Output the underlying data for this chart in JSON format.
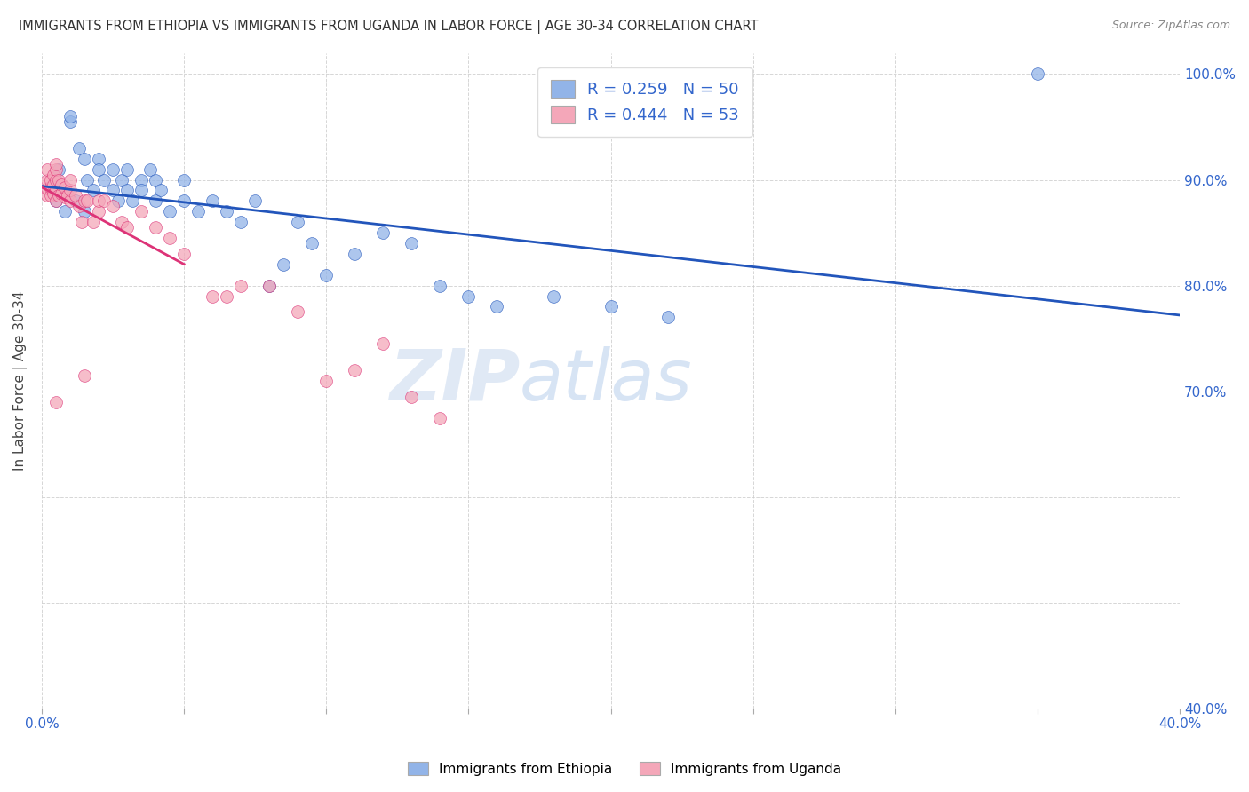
{
  "title": "IMMIGRANTS FROM ETHIOPIA VS IMMIGRANTS FROM UGANDA IN LABOR FORCE | AGE 30-34 CORRELATION CHART",
  "source": "Source: ZipAtlas.com",
  "ylabel": "In Labor Force | Age 30-34",
  "xmin": 0.0,
  "xmax": 0.4,
  "ymin": 0.4,
  "ymax": 1.02,
  "color_ethiopia": "#92b4e8",
  "color_uganda": "#f4a7b9",
  "line_color_ethiopia": "#2255bb",
  "line_color_uganda": "#dd3377",
  "watermark_zip": "ZIP",
  "watermark_atlas": "atlas",
  "ethiopia_x": [
    0.005,
    0.006,
    0.008,
    0.01,
    0.01,
    0.012,
    0.013,
    0.015,
    0.015,
    0.016,
    0.018,
    0.02,
    0.02,
    0.022,
    0.025,
    0.025,
    0.027,
    0.028,
    0.03,
    0.03,
    0.032,
    0.035,
    0.035,
    0.038,
    0.04,
    0.04,
    0.042,
    0.045,
    0.05,
    0.05,
    0.055,
    0.06,
    0.065,
    0.07,
    0.075,
    0.08,
    0.085,
    0.09,
    0.095,
    0.1,
    0.11,
    0.12,
    0.13,
    0.14,
    0.15,
    0.16,
    0.18,
    0.2,
    0.22,
    0.35
  ],
  "ethiopia_y": [
    0.88,
    0.91,
    0.87,
    0.955,
    0.96,
    0.88,
    0.93,
    0.87,
    0.92,
    0.9,
    0.89,
    0.92,
    0.91,
    0.9,
    0.89,
    0.91,
    0.88,
    0.9,
    0.89,
    0.91,
    0.88,
    0.9,
    0.89,
    0.91,
    0.88,
    0.9,
    0.89,
    0.87,
    0.88,
    0.9,
    0.87,
    0.88,
    0.87,
    0.86,
    0.88,
    0.8,
    0.82,
    0.86,
    0.84,
    0.81,
    0.83,
    0.85,
    0.84,
    0.8,
    0.79,
    0.78,
    0.79,
    0.78,
    0.77,
    1.0
  ],
  "uganda_x": [
    0.002,
    0.002,
    0.002,
    0.002,
    0.003,
    0.003,
    0.003,
    0.004,
    0.004,
    0.004,
    0.005,
    0.005,
    0.005,
    0.005,
    0.005,
    0.006,
    0.006,
    0.007,
    0.007,
    0.008,
    0.008,
    0.009,
    0.01,
    0.01,
    0.01,
    0.012,
    0.013,
    0.014,
    0.015,
    0.016,
    0.018,
    0.02,
    0.02,
    0.022,
    0.025,
    0.028,
    0.03,
    0.035,
    0.04,
    0.045,
    0.05,
    0.06,
    0.065,
    0.07,
    0.08,
    0.09,
    0.1,
    0.11,
    0.12,
    0.13,
    0.14,
    0.015,
    0.005
  ],
  "uganda_y": [
    0.885,
    0.892,
    0.9,
    0.91,
    0.885,
    0.893,
    0.9,
    0.887,
    0.895,
    0.905,
    0.88,
    0.89,
    0.9,
    0.91,
    0.915,
    0.885,
    0.9,
    0.887,
    0.895,
    0.884,
    0.893,
    0.885,
    0.88,
    0.89,
    0.9,
    0.885,
    0.875,
    0.86,
    0.88,
    0.88,
    0.86,
    0.87,
    0.88,
    0.88,
    0.875,
    0.86,
    0.855,
    0.87,
    0.855,
    0.845,
    0.83,
    0.79,
    0.79,
    0.8,
    0.8,
    0.775,
    0.71,
    0.72,
    0.745,
    0.695,
    0.675,
    0.715,
    0.69
  ]
}
